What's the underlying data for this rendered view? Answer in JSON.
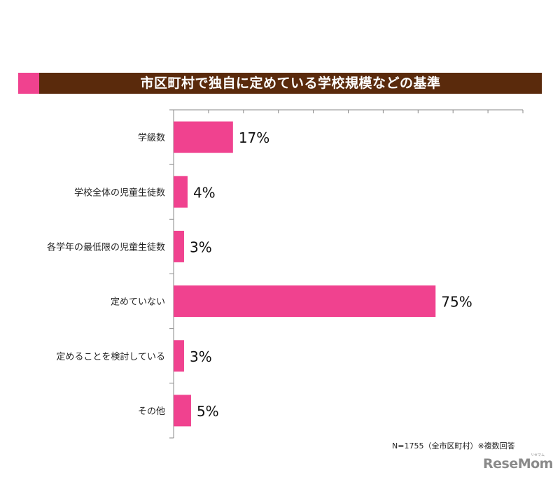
{
  "title": "市区町村で独自に定めている学校規模などの基準",
  "footnote": "N=1755（全市区町村）※複数回答",
  "brand": {
    "logo": "ReseMom",
    "ruby": "リセマム"
  },
  "colors": {
    "bar": "#f0428f",
    "title_bg": "#5a2a0c",
    "accent": "#f0428f"
  },
  "chart_data": {
    "type": "bar",
    "orientation": "horizontal",
    "categories": [
      "学級数",
      "学校全体の児童生徒数",
      "各学年の最低限の児童生徒数",
      "定めていない",
      "定めることを検討している",
      "その他"
    ],
    "values": [
      17,
      4,
      3,
      75,
      3,
      5
    ],
    "labels": [
      "17%",
      "4%",
      "3%",
      "75%",
      "3%",
      "5%"
    ],
    "unit": "%",
    "xlim": [
      0,
      100
    ],
    "grid": false
  }
}
